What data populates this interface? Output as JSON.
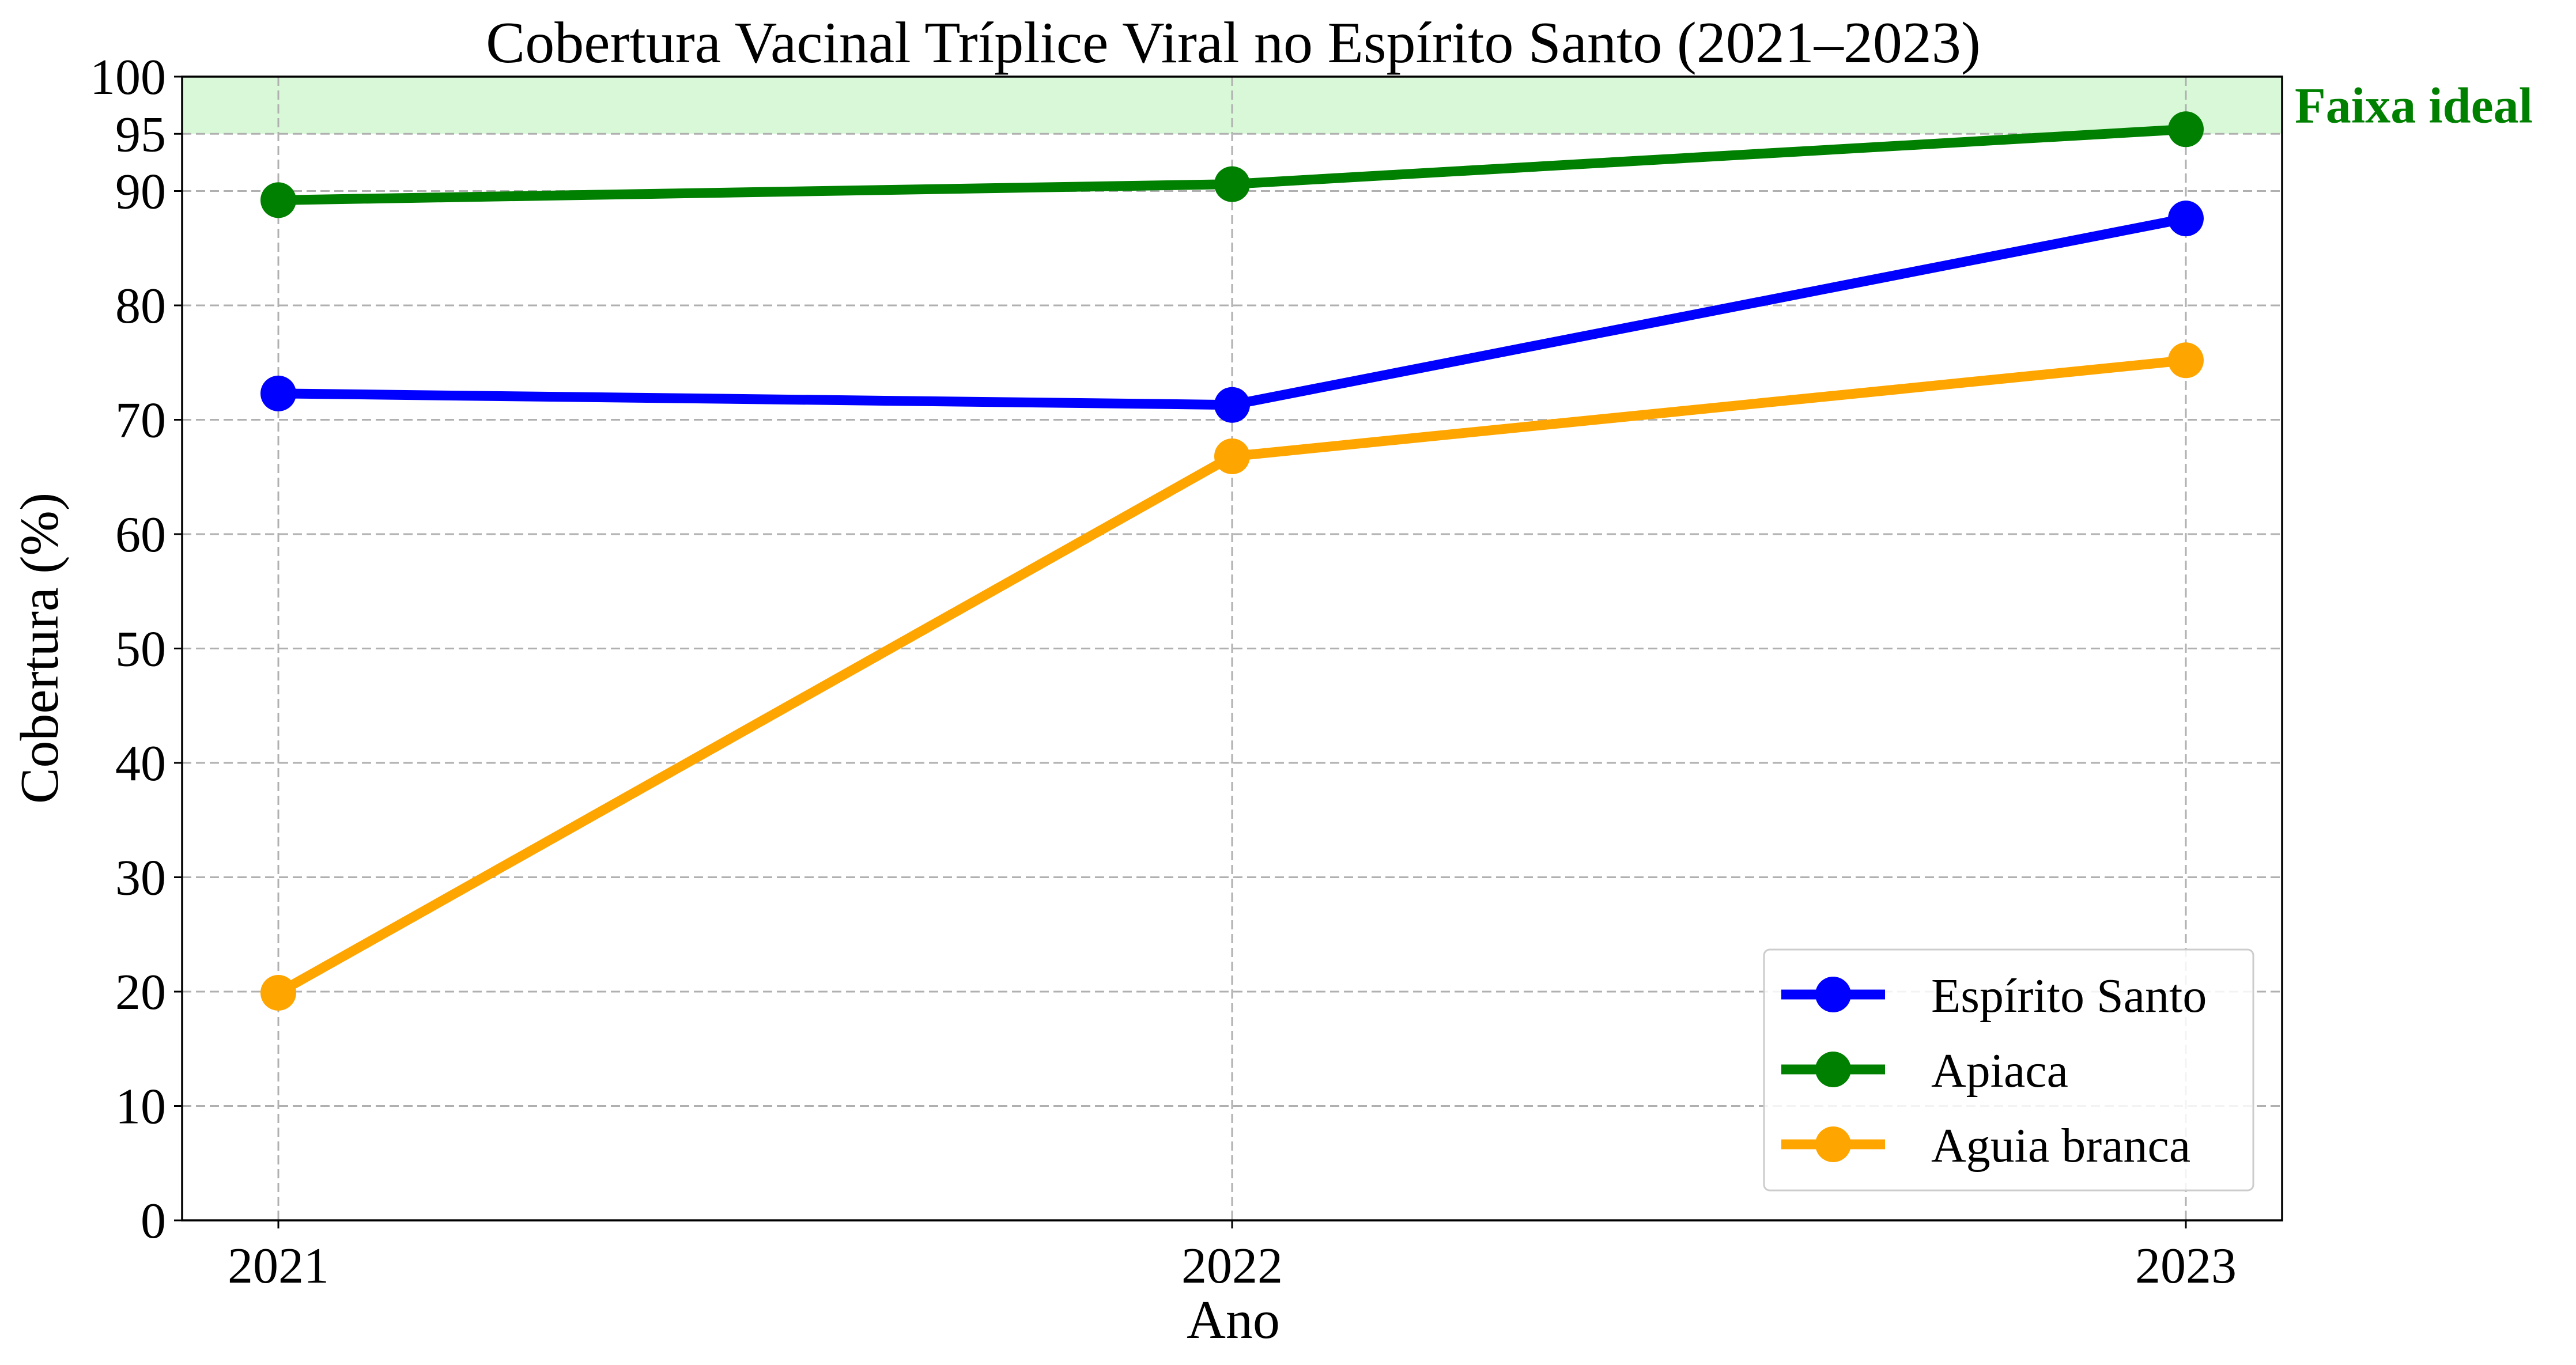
{
  "chart_data": {
    "type": "line",
    "title": "Cobertura Vacinal Tríplice Viral no Espírito Santo (2021–2023)",
    "xlabel": "Ano",
    "ylabel": "Cobertura (%)",
    "x": [
      "2021",
      "2022",
      "2023"
    ],
    "yticks": [
      0,
      10,
      20,
      30,
      40,
      50,
      60,
      70,
      80,
      90,
      95,
      100
    ],
    "ylim": [
      0,
      100
    ],
    "grid": true,
    "legend_position": "lower-right",
    "ideal_band": {
      "label": "Faixa ideal",
      "from": 95,
      "to": 100,
      "color": "#d8f8d8",
      "label_color": "#008000"
    },
    "series": [
      {
        "name": "Espírito Santo",
        "color": "#0000ff",
        "values": [
          72.3,
          71.3,
          87.6
        ]
      },
      {
        "name": "Apiaca",
        "color": "#008000",
        "values": [
          89.2,
          90.6,
          95.4
        ]
      },
      {
        "name": "Aguia branca",
        "color": "#ffa500",
        "values": [
          19.9,
          66.8,
          75.2
        ]
      }
    ]
  }
}
